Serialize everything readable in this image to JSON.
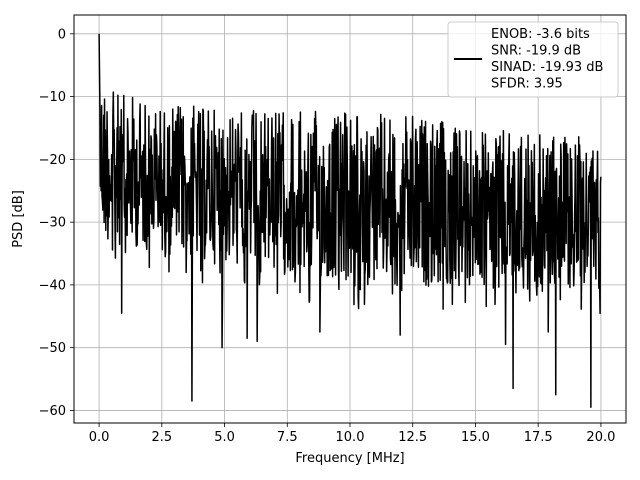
{
  "chart_data": {
    "type": "line",
    "title": "",
    "xlabel": "Frequency [MHz]",
    "ylabel": "PSD [dB]",
    "xlim": [
      -1.0,
      21.0
    ],
    "ylim": [
      -62.0,
      3.0
    ],
    "grid": true,
    "legend_position": "top-right",
    "x_ticks": [
      0.0,
      2.5,
      5.0,
      7.5,
      10.0,
      12.5,
      15.0,
      17.5,
      20.0
    ],
    "x_tick_labels": [
      "0.0",
      "2.5",
      "5.0",
      "7.5",
      "10.0",
      "12.5",
      "15.0",
      "17.5",
      "20.0"
    ],
    "y_ticks": [
      0,
      -10,
      -20,
      -30,
      -40,
      -50,
      -60
    ],
    "y_tick_labels": [
      "0",
      "−10",
      "−20",
      "−30",
      "−40",
      "−50",
      "−60"
    ],
    "series": [
      {
        "name": "ENOB: -3.6 bits\nSNR: -19.9 dB\nSINAD: -19.93 dB\nSFDR: 3.95",
        "color": "#000000",
        "x_range": [
          0.0,
          20.0
        ],
        "points": 1200,
        "peak": {
          "x": 0.0,
          "y": 0.0
        },
        "upper_envelope": [
          [
            0.0,
            -5
          ],
          [
            0.5,
            -9
          ],
          [
            2.5,
            -11
          ],
          [
            7.5,
            -12
          ],
          [
            12.5,
            -13
          ],
          [
            15.0,
            -15
          ],
          [
            20.0,
            -16.5
          ]
        ],
        "lower_envelope": [
          [
            0.0,
            -33
          ],
          [
            5.0,
            -37
          ],
          [
            10.0,
            -40
          ],
          [
            20.0,
            -41
          ]
        ],
        "notable_dips": [
          {
            "x": 0.9,
            "y": -44.5
          },
          {
            "x": 3.7,
            "y": -58.5
          },
          {
            "x": 4.9,
            "y": -50.0
          },
          {
            "x": 5.9,
            "y": -48.5
          },
          {
            "x": 6.3,
            "y": -49.0
          },
          {
            "x": 8.8,
            "y": -47.5
          },
          {
            "x": 12.0,
            "y": -48.0
          },
          {
            "x": 16.2,
            "y": -49.5
          },
          {
            "x": 16.5,
            "y": -56.5
          },
          {
            "x": 17.9,
            "y": -47.5
          },
          {
            "x": 18.2,
            "y": -57.5
          },
          {
            "x": 19.6,
            "y": -59.5
          }
        ]
      }
    ],
    "legend": {
      "lines": [
        "ENOB: -3.6 bits",
        "SNR: -19.9 dB",
        "SINAD: -19.93 dB",
        "SFDR: 3.95"
      ]
    }
  }
}
